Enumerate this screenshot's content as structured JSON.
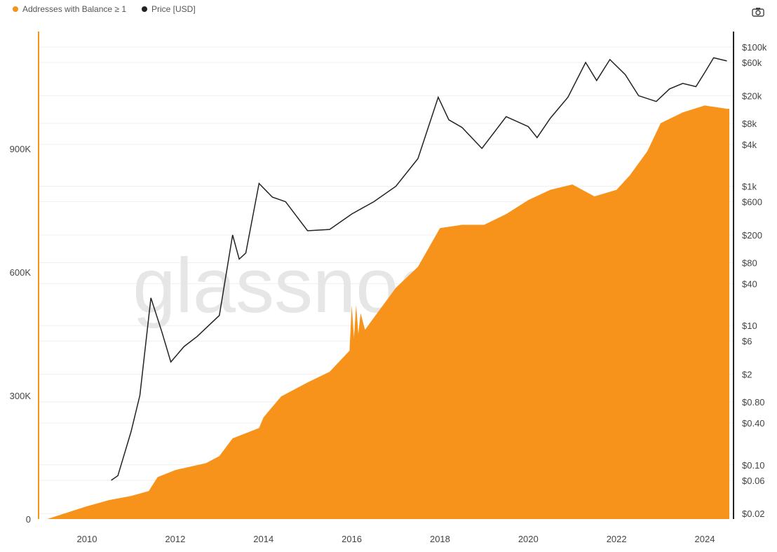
{
  "chart_data": {
    "type": "area",
    "watermark": "glassnode",
    "legend": [
      "Addresses with Balance ≥ 1",
      "Price [USD]"
    ],
    "legend_position": "top-left",
    "colors": {
      "addresses": "#f7931a",
      "price": "#222222"
    },
    "x_ticks": [
      "2010",
      "2012",
      "2014",
      "2016",
      "2018",
      "2020",
      "2022",
      "2024"
    ],
    "xlim": [
      2009.0,
      2024.6
    ],
    "left_axis": {
      "ticks": [
        "0",
        "300K",
        "600K",
        "900K"
      ],
      "tick_values": [
        0,
        300,
        600,
        900
      ],
      "ylim": [
        0,
        900
      ],
      "unit": "K"
    },
    "right_axis": {
      "scale": "log",
      "ticks": [
        "$100k",
        "$60k",
        "$20k",
        "$8k",
        "$4k",
        "$1k",
        "$600",
        "$200",
        "$80",
        "$40",
        "$10",
        "$6",
        "$2",
        "$0.80",
        "$0.40",
        "$0.10",
        "$0.06",
        "$0.02"
      ],
      "tick_values": [
        100000,
        60000,
        20000,
        8000,
        4000,
        1000,
        600,
        200,
        80,
        40,
        10,
        6,
        2,
        0.8,
        0.4,
        0.1,
        0.06,
        0.02
      ]
    },
    "series": [
      {
        "name": "Addresses with Balance ≥ 1",
        "unit": "K",
        "x": [
          2009.1,
          2010,
          2010.5,
          2011,
          2011.4,
          2011.6,
          2012,
          2012.7,
          2013,
          2013.3,
          2013.9,
          2014,
          2014.4,
          2015,
          2015.5,
          2015.95,
          2016.0,
          2016.05,
          2016.1,
          2016.15,
          2016.2,
          2016.3,
          2017,
          2017.5,
          2018,
          2018.5,
          2019,
          2019.5,
          2020,
          2020.5,
          2021,
          2021.5,
          2022,
          2022.3,
          2022.7,
          2023,
          2023.5,
          2024,
          2024.5
        ],
        "values": [
          0,
          31,
          46,
          56,
          68,
          102,
          119,
          136,
          153,
          196,
          221,
          247,
          298,
          332,
          358,
          409,
          520,
          440,
          520,
          450,
          500,
          460,
          562,
          613,
          707,
          715,
          715,
          741,
          775,
          800,
          813,
          784,
          800,
          835,
          894,
          962,
          988,
          1005,
          997
        ]
      },
      {
        "name": "Price [USD]",
        "x": [
          2010.55,
          2010.7,
          2011,
          2011.2,
          2011.45,
          2011.7,
          2011.9,
          2012.2,
          2012.5,
          2013,
          2013.3,
          2013.45,
          2013.6,
          2013.9,
          2014.2,
          2014.5,
          2015,
          2015.5,
          2016,
          2016.5,
          2017,
          2017.5,
          2017.96,
          2018.2,
          2018.5,
          2018.95,
          2019.5,
          2020,
          2020.2,
          2020.5,
          2020.9,
          2021.3,
          2021.55,
          2021.85,
          2022.2,
          2022.5,
          2022.9,
          2023.2,
          2023.5,
          2023.8,
          2024,
          2024.2,
          2024.5
        ],
        "values": [
          0.06,
          0.07,
          0.3,
          1.0,
          25,
          8,
          3,
          5,
          7,
          14,
          200,
          90,
          110,
          1100,
          700,
          600,
          230,
          240,
          400,
          600,
          1000,
          2500,
          19000,
          9000,
          7000,
          3500,
          10000,
          7200,
          5000,
          9500,
          19000,
          60000,
          33000,
          66000,
          40000,
          20000,
          16500,
          25000,
          30000,
          27000,
          43000,
          70000,
          63000
        ]
      }
    ]
  }
}
